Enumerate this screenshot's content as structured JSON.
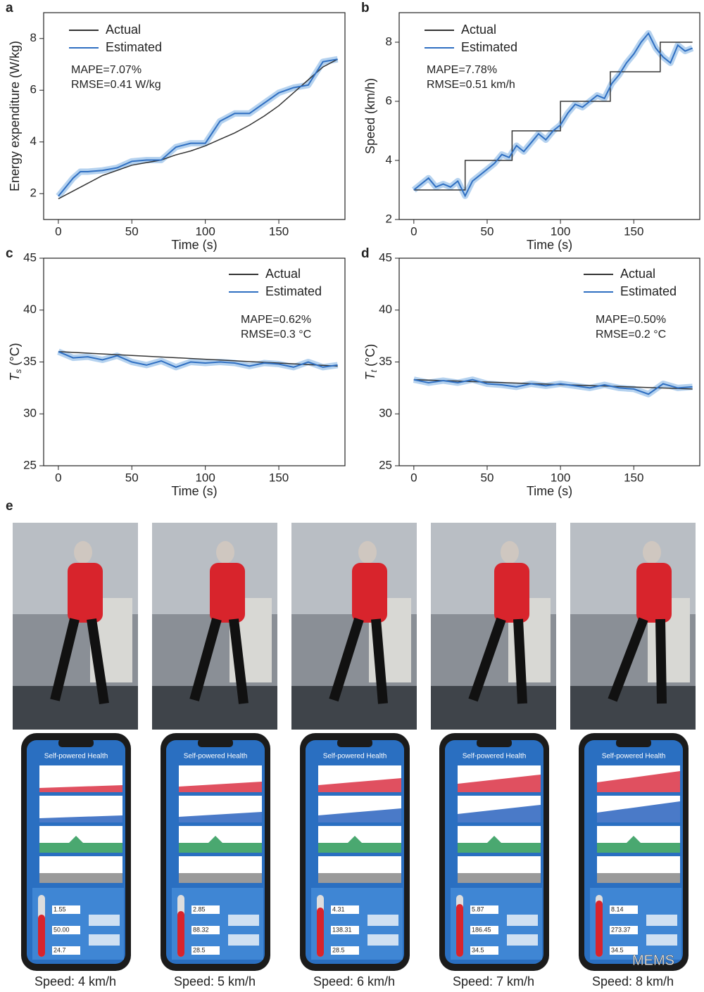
{
  "chart_data": [
    {
      "type": "line",
      "panel_label": "a",
      "x_label": "Time (s)",
      "y_label": "Energy expenditure (W/kg)",
      "xlim": [
        -10,
        195
      ],
      "xticks": [
        0,
        50,
        100,
        150
      ],
      "ylim": [
        1,
        9
      ],
      "yticks": [
        2,
        4,
        6,
        8
      ],
      "legend": "upper left",
      "annotations": [
        "MAPE=7.07%",
        "RMSE=0.41 W/kg"
      ],
      "series": [
        {
          "name": "Actual",
          "color": "#333333",
          "x": [
            0,
            10,
            20,
            30,
            40,
            50,
            60,
            70,
            80,
            90,
            100,
            110,
            120,
            130,
            140,
            150,
            160,
            170,
            180,
            190
          ],
          "values": [
            1.8,
            2.1,
            2.4,
            2.7,
            2.9,
            3.1,
            3.2,
            3.3,
            3.5,
            3.65,
            3.85,
            4.1,
            4.35,
            4.65,
            5.0,
            5.4,
            5.9,
            6.4,
            6.9,
            7.2
          ]
        },
        {
          "name": "Estimated",
          "color": "#2f6fc2",
          "x": [
            0,
            10,
            15,
            20,
            30,
            40,
            50,
            60,
            70,
            80,
            90,
            100,
            110,
            120,
            130,
            140,
            150,
            160,
            170,
            180,
            190
          ],
          "values": [
            1.9,
            2.6,
            2.85,
            2.85,
            2.9,
            3.0,
            3.25,
            3.3,
            3.3,
            3.8,
            3.95,
            3.95,
            4.8,
            5.1,
            5.1,
            5.5,
            5.9,
            6.1,
            6.2,
            7.1,
            7.2
          ]
        }
      ]
    },
    {
      "type": "line",
      "panel_label": "b",
      "x_label": "Time (s)",
      "y_label": "Speed (km/h)",
      "xlim": [
        -10,
        195
      ],
      "xticks": [
        0,
        50,
        100,
        150
      ],
      "ylim": [
        2,
        9
      ],
      "yticks": [
        2,
        4,
        6,
        8
      ],
      "legend": "upper left",
      "annotations": [
        "MAPE=7.78%",
        "RMSE=0.51 km/h"
      ],
      "series": [
        {
          "name": "Actual",
          "color": "#333333",
          "x": [
            0,
            35,
            35,
            67,
            67,
            100,
            100,
            134,
            134,
            168,
            168,
            190
          ],
          "values": [
            3,
            3,
            4,
            4,
            5,
            5,
            6,
            6,
            7,
            7,
            8,
            8
          ]
        },
        {
          "name": "Estimated",
          "color": "#2f6fc2",
          "x": [
            0,
            5,
            10,
            15,
            20,
            25,
            30,
            35,
            40,
            45,
            50,
            55,
            60,
            65,
            70,
            75,
            80,
            85,
            90,
            95,
            100,
            105,
            110,
            115,
            120,
            125,
            130,
            135,
            140,
            145,
            150,
            155,
            160,
            165,
            170,
            175,
            180,
            185,
            190
          ],
          "values": [
            3.0,
            3.2,
            3.4,
            3.1,
            3.2,
            3.1,
            3.3,
            2.8,
            3.3,
            3.5,
            3.7,
            3.9,
            4.2,
            4.1,
            4.5,
            4.3,
            4.6,
            4.9,
            4.7,
            5.0,
            5.2,
            5.6,
            5.9,
            5.8,
            6.0,
            6.2,
            6.1,
            6.6,
            6.9,
            7.3,
            7.6,
            8.0,
            8.3,
            7.8,
            7.5,
            7.3,
            7.9,
            7.7,
            7.8
          ]
        }
      ]
    },
    {
      "type": "line",
      "panel_label": "c",
      "x_label": "Time (s)",
      "y_label": {
        "symbol": "T",
        "subscript": "s",
        "unit": " (°C)"
      },
      "xlim": [
        -10,
        195
      ],
      "xticks": [
        0,
        50,
        100,
        150
      ],
      "ylim": [
        25,
        45
      ],
      "yticks": [
        25,
        30,
        35,
        40,
        45
      ],
      "legend": "upper right",
      "annotations": [
        "MAPE=0.62%",
        "RMSE=0.3 °C"
      ],
      "series": [
        {
          "name": "Actual",
          "color": "#333333",
          "x": [
            0,
            190
          ],
          "values": [
            36.0,
            34.6
          ]
        },
        {
          "name": "Estimated",
          "color": "#2f6fc2",
          "x": [
            0,
            10,
            20,
            30,
            40,
            50,
            60,
            70,
            80,
            90,
            100,
            110,
            120,
            130,
            140,
            150,
            160,
            170,
            180,
            190
          ],
          "values": [
            36.0,
            35.4,
            35.5,
            35.2,
            35.6,
            35.0,
            34.7,
            35.1,
            34.5,
            35.0,
            34.9,
            35.0,
            34.9,
            34.6,
            34.9,
            34.8,
            34.5,
            35.0,
            34.5,
            34.7
          ]
        }
      ]
    },
    {
      "type": "line",
      "panel_label": "d",
      "x_label": "Time (s)",
      "y_label": {
        "symbol": "T",
        "subscript": "t",
        "unit": " (°C)"
      },
      "xlim": [
        -10,
        195
      ],
      "xticks": [
        0,
        50,
        100,
        150
      ],
      "ylim": [
        25,
        45
      ],
      "yticks": [
        25,
        30,
        35,
        40,
        45
      ],
      "legend": "upper right",
      "annotations": [
        "MAPE=0.50%",
        "RMSE=0.2 °C"
      ],
      "series": [
        {
          "name": "Actual",
          "color": "#333333",
          "x": [
            0,
            190
          ],
          "values": [
            33.3,
            32.4
          ]
        },
        {
          "name": "Estimated",
          "color": "#2f6fc2",
          "x": [
            0,
            10,
            20,
            30,
            40,
            50,
            60,
            70,
            80,
            90,
            100,
            110,
            120,
            130,
            140,
            150,
            160,
            170,
            180,
            190
          ],
          "values": [
            33.3,
            33.0,
            33.2,
            33.0,
            33.3,
            32.9,
            32.8,
            32.6,
            32.9,
            32.7,
            32.9,
            32.7,
            32.5,
            32.8,
            32.5,
            32.4,
            31.9,
            32.9,
            32.5,
            32.6
          ]
        }
      ]
    }
  ],
  "panel_e": {
    "label": "e",
    "frames": [
      {
        "caption": "Speed: 4 km/h",
        "app_title": "Self-powered Health",
        "readings": [
          "1.55",
          "50.00",
          "24.7"
        ]
      },
      {
        "caption": "Speed: 5 km/h",
        "app_title": "Self-powered Health",
        "readings": [
          "2.85",
          "88.32",
          "28.5"
        ]
      },
      {
        "caption": "Speed: 6 km/h",
        "app_title": "Self-powered Health",
        "readings": [
          "4.31",
          "138.31",
          "28.5"
        ]
      },
      {
        "caption": "Speed: 7 km/h",
        "app_title": "Self-powered Health",
        "readings": [
          "5.87",
          "186.45",
          "34.5"
        ]
      },
      {
        "caption": "Speed: 8 km/h",
        "app_title": "Self-powered Health",
        "readings": [
          "8.14",
          "273.37",
          "34.5"
        ]
      }
    ]
  },
  "watermark": "MEMS"
}
